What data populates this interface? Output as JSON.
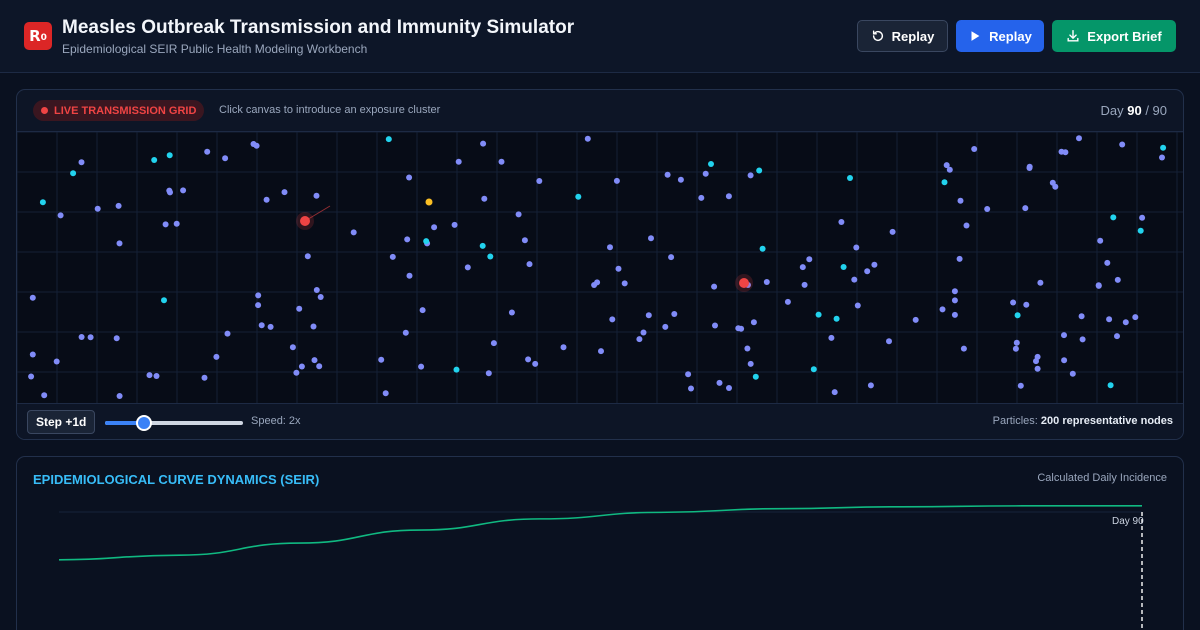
{
  "header": {
    "logo_text": "R",
    "logo_sub": "0",
    "title": "Measles Outbreak Transmission and Immunity Simulator",
    "subtitle": "Epidemiological SEIR Public Health Modeling Workbench",
    "buttons": {
      "replay_secondary": "Replay",
      "replay_primary": "Replay",
      "export": "Export Brief"
    }
  },
  "grid_panel": {
    "badge": "LIVE TRANSMISSION GRID",
    "hint": "Click canvas to introduce an exposure cluster",
    "day_label": "Day",
    "day_current": "90",
    "day_total": "/ 90",
    "step_label": "Step +1d",
    "speed_label": "Speed: 2x",
    "speed_fraction": 0.28,
    "particles_label": "Particles:",
    "particles_value": "200 representative nodes"
  },
  "chart_panel": {
    "title": "EPIDEMIOLOGICAL CURVE DYNAMICS (SEIR)",
    "note": "Calculated Daily Incidence",
    "marker_label": "Day 90"
  },
  "colors": {
    "recovered": "#818cf8",
    "susceptible": "#22d3ee",
    "exposed": "#fbbf24",
    "infected": "#ef4444",
    "curve": "#10b981",
    "accent": "#38bdf8"
  },
  "chart_data": {
    "type": "line",
    "title": "EPIDEMIOLOGICAL CURVE DYNAMICS (SEIR)",
    "xlabel": "",
    "ylabel": "",
    "x": [
      0,
      10,
      20,
      30,
      40,
      50,
      60,
      70,
      80,
      90
    ],
    "series": [
      {
        "values": [
          0.4,
          0.45,
          0.58,
          0.72,
          0.84,
          0.91,
          0.95,
          0.97,
          0.98,
          0.98
        ]
      }
    ],
    "marker": {
      "x": 90,
      "label": "Day 90"
    }
  }
}
